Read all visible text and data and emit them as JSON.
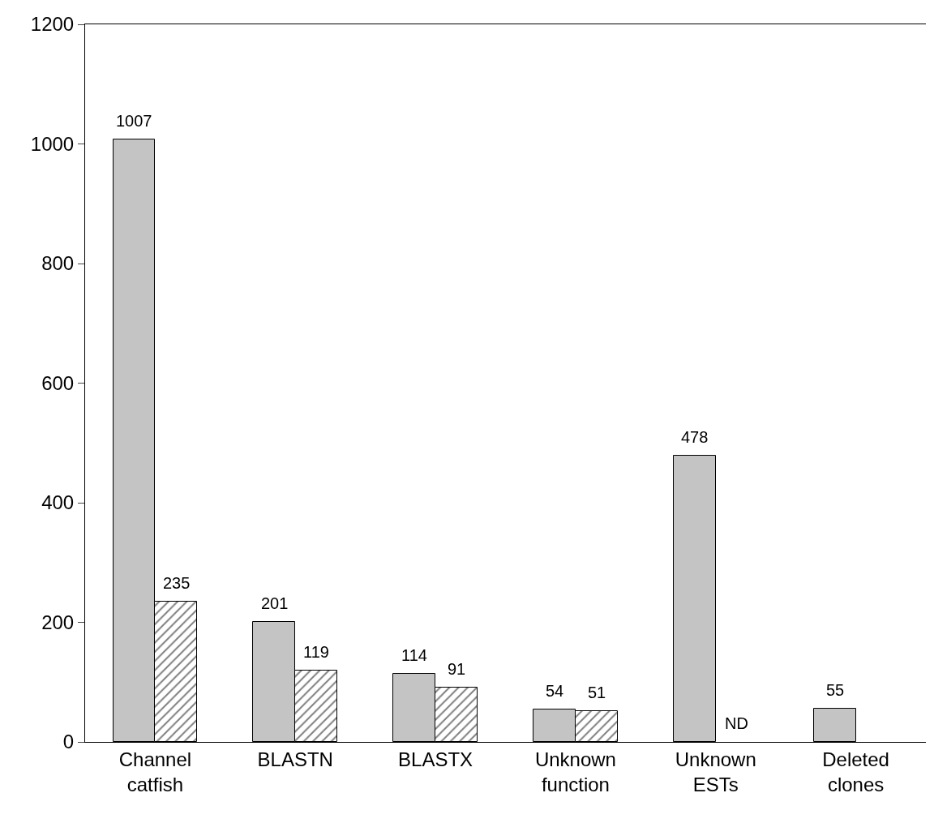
{
  "chart_data": {
    "type": "bar",
    "categories": [
      "Channel catfish",
      "BLASTN",
      "BLASTX",
      "Unknown function",
      "Unknown ESTs",
      "Deleted clones"
    ],
    "series": [
      {
        "color": "#c4c4c4",
        "values": [
          1007,
          201,
          114,
          54,
          478,
          55
        ],
        "value_labels": [
          "1007",
          "201",
          "114",
          "54",
          "478",
          "55"
        ]
      },
      {
        "color": "#000000",
        "values": [
          235,
          119,
          91,
          51,
          null,
          null
        ],
        "value_labels": [
          "235",
          "119",
          "91",
          "51",
          "ND",
          null
        ]
      }
    ],
    "ylim": [
      0,
      1200
    ],
    "yticks": [
      0,
      200,
      400,
      600,
      800,
      1000,
      1200
    ]
  }
}
